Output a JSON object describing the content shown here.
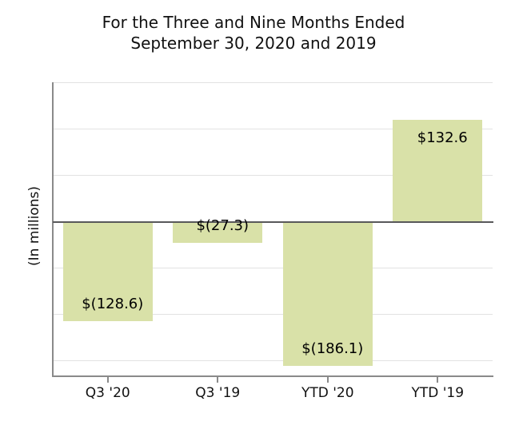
{
  "title": {
    "line1": "For the Three and Nine Months Ended",
    "line2": "September 30, 2020 and 2019"
  },
  "ylabel": "(In millions)",
  "colors": {
    "bar_fill": "#d9e1a8",
    "grid": "#e2e2e2",
    "zero_line": "#58585a",
    "axis": "#8a8a8a",
    "text": "#111111"
  },
  "chart_data": {
    "type": "bar",
    "title": "For the Three and Nine Months Ended September 30, 2020 and 2019",
    "categories": [
      "Q3 '20",
      "Q3 '19",
      "YTD '20",
      "YTD '19"
    ],
    "values": [
      -128.6,
      -27.3,
      -186.1,
      132.6
    ],
    "data_labels": [
      "$(128.6)",
      "$(27.3)",
      "$(186.1)",
      "$132.6"
    ],
    "xlabel": "",
    "ylabel": "(In millions)",
    "ylim": [
      -199,
      181
    ],
    "grid_step": 60,
    "grid": "horizontal",
    "legend_position": "none",
    "y_tick_labels_shown": false
  }
}
